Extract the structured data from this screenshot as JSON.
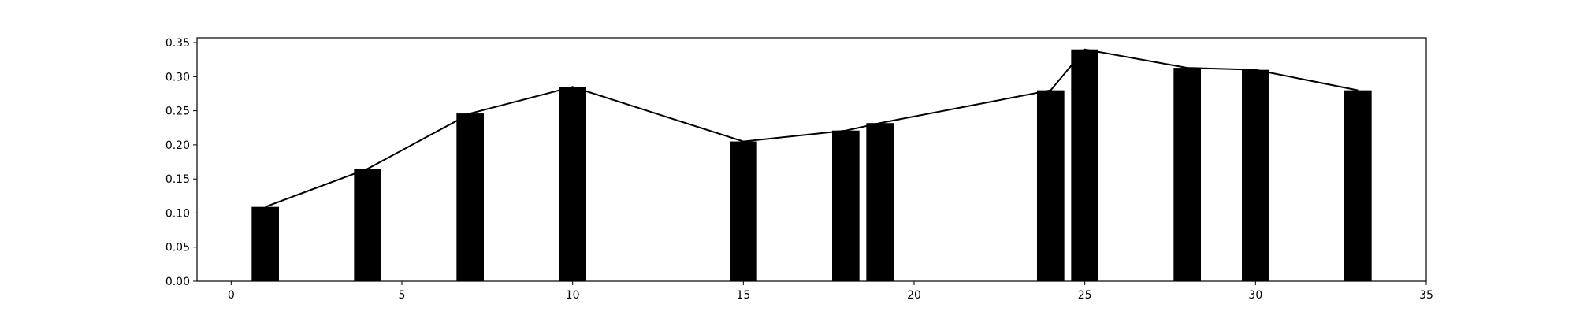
{
  "chart_data": {
    "type": "bar",
    "title": "",
    "xlabel": "",
    "ylabel": "",
    "xlim": [
      -1,
      35
    ],
    "ylim": [
      0,
      0.357
    ],
    "x_ticks": [
      "0",
      "5",
      "10",
      "15",
      "20",
      "25",
      "30",
      "35"
    ],
    "y_ticks": [
      "0.00",
      "0.05",
      "0.10",
      "0.15",
      "0.20",
      "0.25",
      "0.30",
      "0.35"
    ],
    "bar_width": 0.8,
    "grid": false,
    "bar_color": "#000000",
    "line_color": "#000000",
    "series": [
      {
        "kind": "bar",
        "x": [
          1,
          4,
          7,
          10,
          15,
          18,
          19,
          24,
          25,
          28,
          30,
          33
        ],
        "values": [
          0.109,
          0.165,
          0.246,
          0.285,
          0.205,
          0.221,
          0.232,
          0.28,
          0.34,
          0.313,
          0.31,
          0.28
        ]
      },
      {
        "kind": "line",
        "x": [
          1,
          4,
          7,
          10,
          15,
          18,
          19,
          24,
          25,
          28,
          30,
          33
        ],
        "values": [
          0.109,
          0.165,
          0.246,
          0.285,
          0.205,
          0.221,
          0.232,
          0.28,
          0.34,
          0.313,
          0.31,
          0.28
        ]
      }
    ]
  }
}
